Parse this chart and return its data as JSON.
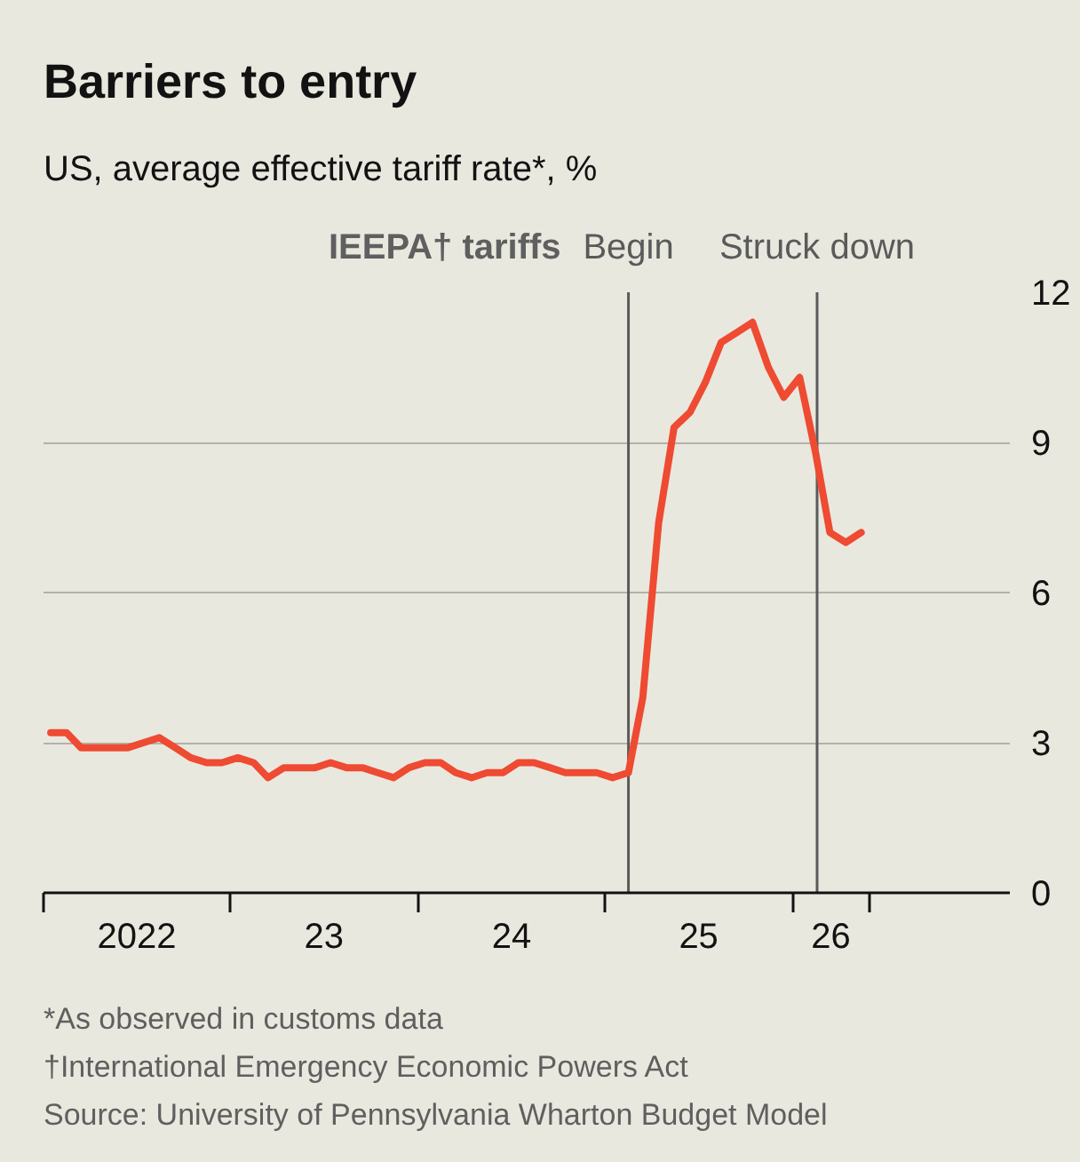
{
  "chart_data": {
    "type": "line",
    "title": "Barriers to entry",
    "subtitle": "US, average effective tariff rate*, %",
    "x": [
      "2022-01-15",
      "2022-02-15",
      "2022-03-15",
      "2022-04-15",
      "2022-05-15",
      "2022-06-15",
      "2022-07-15",
      "2022-08-15",
      "2022-09-15",
      "2022-10-15",
      "2022-11-15",
      "2022-12-15",
      "2023-01-15",
      "2023-02-15",
      "2023-03-15",
      "2023-04-15",
      "2023-05-15",
      "2023-06-15",
      "2023-07-15",
      "2023-08-15",
      "2023-09-15",
      "2023-10-15",
      "2023-11-15",
      "2023-12-15",
      "2024-01-15",
      "2024-02-15",
      "2024-03-15",
      "2024-04-15",
      "2024-05-15",
      "2024-06-15",
      "2024-07-15",
      "2024-08-15",
      "2024-09-15",
      "2024-10-15",
      "2024-11-15",
      "2024-12-15",
      "2025-01-15",
      "2025-02-15",
      "2025-03-15",
      "2025-04-15",
      "2025-05-15",
      "2025-06-15",
      "2025-07-15",
      "2025-08-15",
      "2025-09-15",
      "2025-10-15",
      "2025-11-15",
      "2025-12-15",
      "2026-01-15",
      "2026-02-15",
      "2026-03-15",
      "2026-04-15",
      "2026-05-15"
    ],
    "series": [
      {
        "color": "#ef4a32",
        "values": [
          3.2,
          3.2,
          2.9,
          2.9,
          2.9,
          2.9,
          3.0,
          3.1,
          2.9,
          2.7,
          2.6,
          2.6,
          2.7,
          2.6,
          2.3,
          2.5,
          2.5,
          2.5,
          2.6,
          2.5,
          2.5,
          2.4,
          2.3,
          2.5,
          2.6,
          2.6,
          2.4,
          2.3,
          2.4,
          2.4,
          2.6,
          2.6,
          2.5,
          2.4,
          2.4,
          2.4,
          2.3,
          2.4,
          3.9,
          7.4,
          9.3,
          9.6,
          10.2,
          11.0,
          11.2,
          11.4,
          10.5,
          9.9,
          10.3,
          8.8,
          7.2,
          7.0,
          7.2
        ]
      }
    ],
    "xlim": [
      "2022-01-01",
      "2027-03-01"
    ],
    "xticks": [
      {
        "value": "2022-01-01",
        "label": null
      },
      {
        "value": "2022-07-02",
        "label": "2022"
      },
      {
        "value": "2023-01-01",
        "label": null
      },
      {
        "value": "2023-07-02",
        "label": "23"
      },
      {
        "value": "2024-01-01",
        "label": null
      },
      {
        "value": "2024-07-02",
        "label": "24"
      },
      {
        "value": "2025-01-01",
        "label": null
      },
      {
        "value": "2025-07-02",
        "label": "25"
      },
      {
        "value": "2026-01-01",
        "label": null
      },
      {
        "value": "2026-03-17",
        "label": "26"
      },
      {
        "value": "2026-06-01",
        "label": null
      }
    ],
    "ylim": [
      0,
      12
    ],
    "yticks": [
      0,
      3,
      6,
      9,
      12
    ],
    "grid": "y",
    "line_style": "solid",
    "ref_lines": [
      {
        "axis": "x",
        "value": "2025-02-15",
        "label": "Begin",
        "color": "#5a5a5a"
      },
      {
        "axis": "x",
        "value": "2026-02-18",
        "label": "Struck down",
        "color": "#5a5a5a"
      }
    ],
    "annotations": [
      {
        "text": "IEEPA† tariffs",
        "x": "2025-02-15",
        "y": 12
      },
      "*As observed in customs data",
      "†International Emergency Economic Powers Act",
      "Source: University of Pennsylvania Wharton Budget Model"
    ]
  }
}
